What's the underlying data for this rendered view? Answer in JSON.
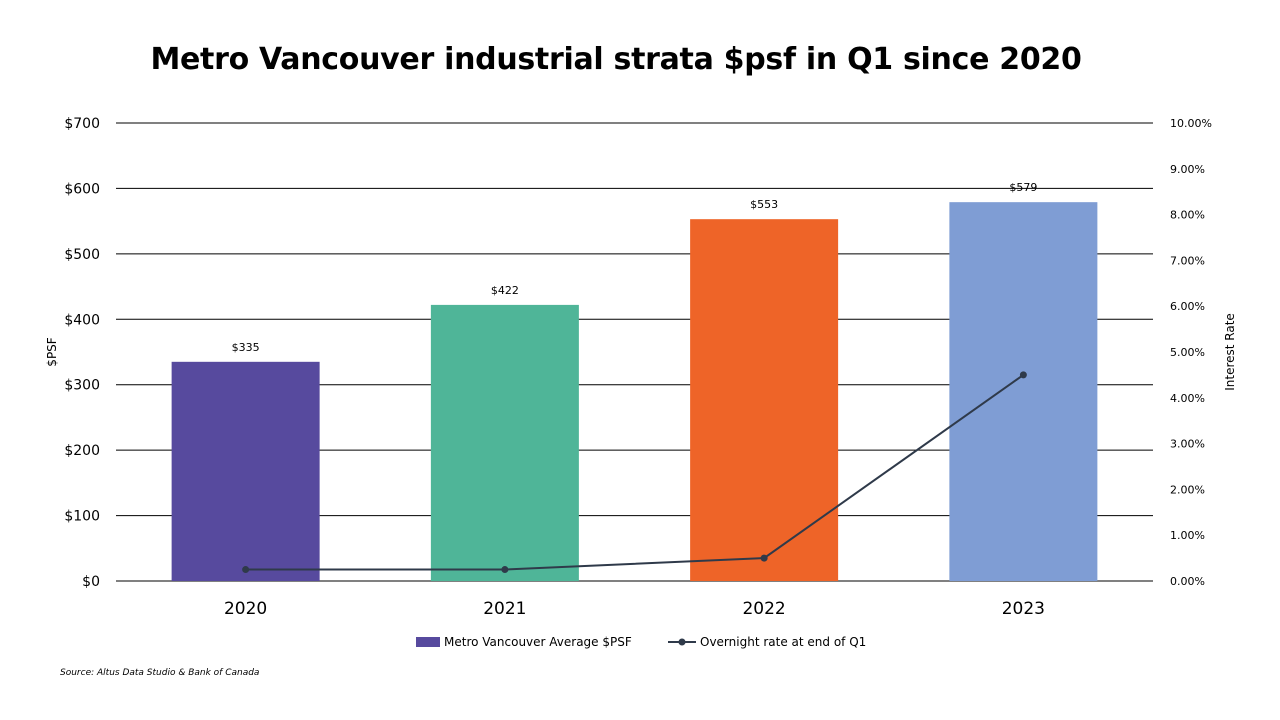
{
  "chart_data": {
    "type": "bar",
    "title": "Metro Vancouver industrial strata $psf in Q1 since 2020",
    "categories": [
      "2020",
      "2021",
      "2022",
      "2023"
    ],
    "series": [
      {
        "name": "Metro Vancouver Average $PSF",
        "type": "bar",
        "axis": "left",
        "values": [
          335,
          422,
          553,
          579
        ],
        "value_labels": [
          "$335",
          "$422",
          "$553",
          "$579"
        ],
        "colors": [
          "#574a9e",
          "#4fb598",
          "#ee6428",
          "#7f9dd4"
        ],
        "legend_color": "#574a9e"
      },
      {
        "name": "Overnight rate at end of Q1",
        "type": "line",
        "axis": "right",
        "values": [
          0.25,
          0.25,
          0.5,
          4.5
        ],
        "color": "#2f3a4a"
      }
    ],
    "ylabel": "$PSF",
    "y2label": "Interest Rate",
    "ylim": [
      0,
      700
    ],
    "y2lim": [
      0,
      10
    ],
    "yticks": [
      "$0",
      "$100",
      "$200",
      "$300",
      "$400",
      "$500",
      "$600",
      "$700"
    ],
    "y2ticks": [
      "0.00%",
      "1.00%",
      "2.00%",
      "3.00%",
      "4.00%",
      "5.00%",
      "6.00%",
      "7.00%",
      "8.00%",
      "9.00%",
      "10.00%"
    ],
    "grid": true,
    "legend_position": "bottom"
  },
  "source": "Source: Altus Data Studio & Bank of Canada"
}
